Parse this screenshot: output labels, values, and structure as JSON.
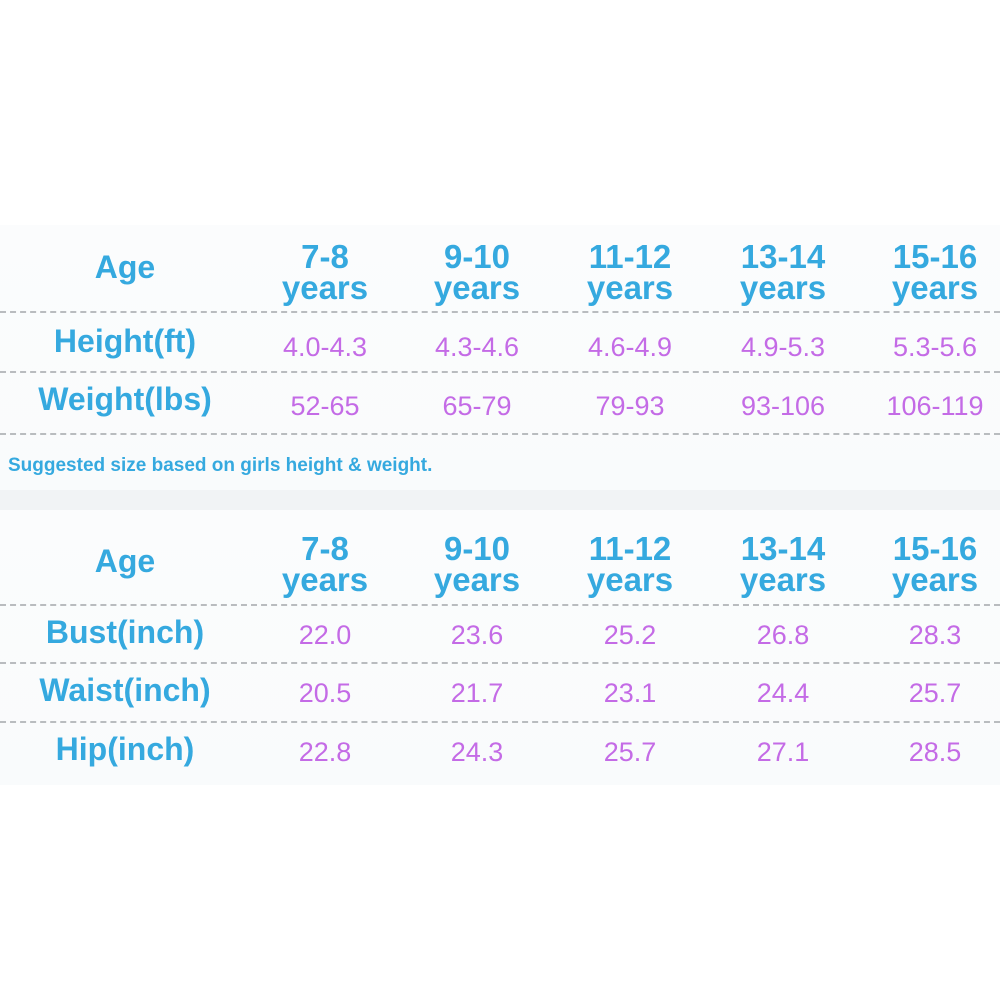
{
  "columns": [
    "7-8",
    "9-10",
    "11-12",
    "13-14",
    "15-16"
  ],
  "years_label": "years",
  "table1": {
    "age_label": "Age",
    "rows": [
      {
        "label": "Height(ft)",
        "values": [
          "4.0-4.3",
          "4.3-4.6",
          "4.6-4.9",
          "4.9-5.3",
          "5.3-5.6"
        ]
      },
      {
        "label": "Weight(lbs)",
        "values": [
          "52-65",
          "65-79",
          "79-93",
          "93-106",
          "106-119"
        ]
      }
    ]
  },
  "note": "Suggested size based on girls height & weight.",
  "table2": {
    "age_label": "Age",
    "rows": [
      {
        "label": "Bust(inch)",
        "values": [
          "22.0",
          "23.6",
          "25.2",
          "26.8",
          "28.3"
        ]
      },
      {
        "label": "Waist(inch)",
        "values": [
          "20.5",
          "21.7",
          "23.1",
          "24.4",
          "25.7"
        ]
      },
      {
        "label": "Hip(inch)",
        "values": [
          "22.8",
          "24.3",
          "25.7",
          "27.1",
          "28.5"
        ]
      }
    ]
  },
  "colors": {
    "label_blue": "#35a9df",
    "value_purple": "#c46be6",
    "dash_gray": "#b9bcbf"
  }
}
